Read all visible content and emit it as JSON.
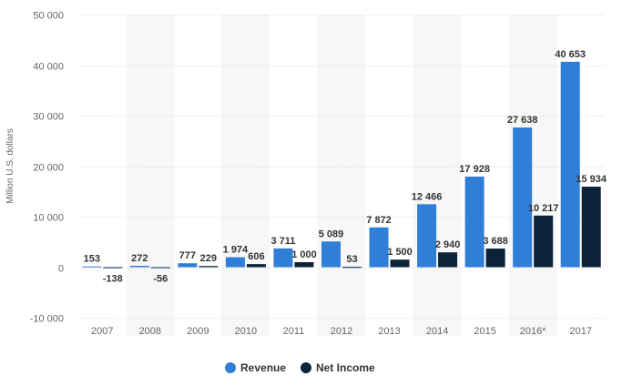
{
  "chart_data": {
    "type": "bar",
    "categories": [
      "2007",
      "2008",
      "2009",
      "2010",
      "2011",
      "2012",
      "2013",
      "2014",
      "2015",
      "2016*",
      "2017"
    ],
    "series": [
      {
        "name": "Revenue",
        "color": "#2f7ed8",
        "values": [
          153,
          272,
          777,
          1974,
          3711,
          5089,
          7872,
          12466,
          17928,
          27638,
          40653
        ],
        "labels": [
          "153",
          "272",
          "777",
          "1 974",
          "3 711",
          "5 089",
          "7 872",
          "12 466",
          "17 928",
          "27 638",
          "40 653"
        ]
      },
      {
        "name": "Net Income",
        "color": "#0d233a",
        "values": [
          -138,
          -56,
          229,
          606,
          1000,
          53,
          1500,
          2940,
          3688,
          10217,
          15934
        ],
        "labels": [
          "-138",
          "-56",
          "229",
          "606",
          "1 000",
          "53",
          "1 500",
          "2 940",
          "3 688",
          "10 217",
          "15 934"
        ]
      }
    ],
    "ylabel": "Million U.S. dollars",
    "ylim": [
      -10000,
      50000
    ],
    "yticks": [
      -10000,
      0,
      10000,
      20000,
      30000,
      40000,
      50000
    ],
    "ytick_labels": [
      "-10 000",
      "0",
      "10 000",
      "20 000",
      "30 000",
      "40 000",
      "50 000"
    ],
    "grid": true,
    "legend_position": "bottom"
  }
}
